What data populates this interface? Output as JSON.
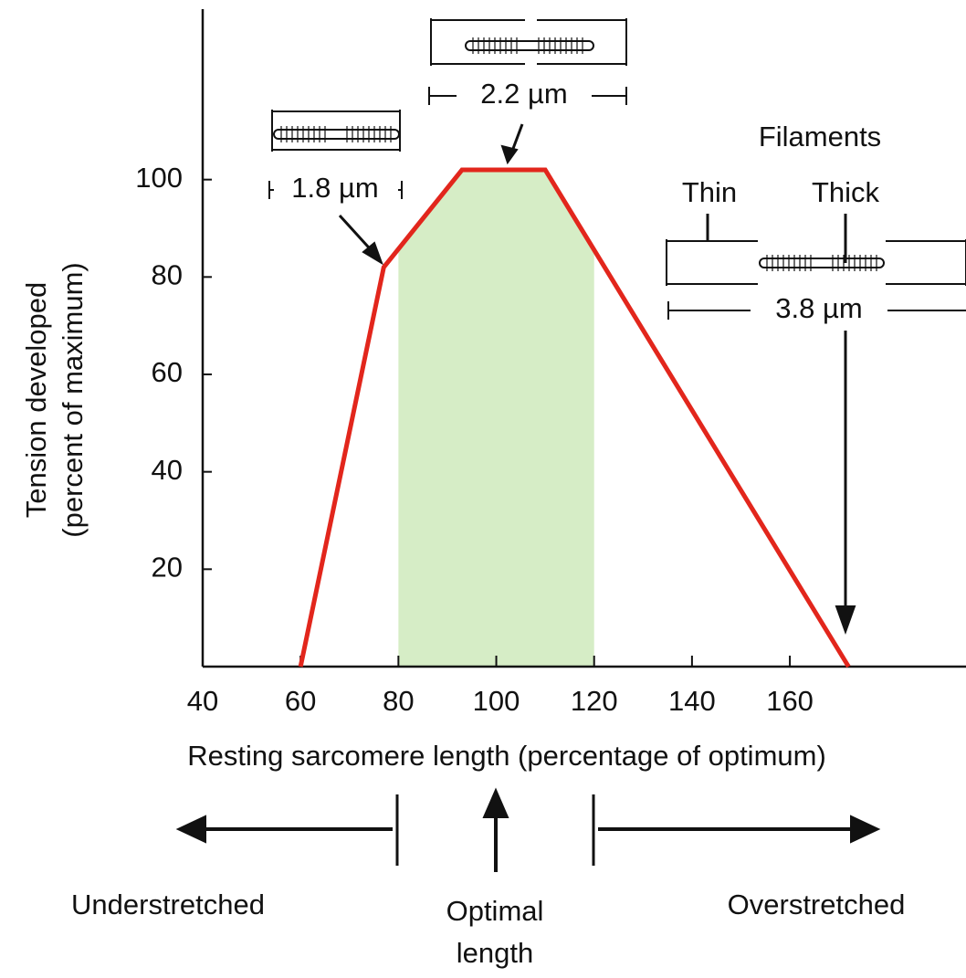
{
  "chart_data": {
    "type": "line",
    "xlabel": "Resting sarcomere length (percentage of optimum)",
    "ylabel": [
      "Tension developed",
      "(percent of maximum)"
    ],
    "x": [
      60,
      77,
      93,
      110,
      172
    ],
    "series": [
      {
        "color": "#e2261c",
        "values": [
          0,
          82,
          102,
          102,
          0
        ]
      }
    ],
    "xlim": [
      40,
      196
    ],
    "xticks": [
      40,
      60,
      80,
      100,
      120,
      140,
      160
    ],
    "ylim": [
      0,
      135
    ],
    "yticks": [
      20,
      40,
      60,
      80,
      100
    ],
    "highlight": {
      "xlim": [
        80,
        120
      ],
      "color": "#d6edc6"
    },
    "annotations": {
      "short": "1.8 µm",
      "optimal": "2.2 µm",
      "long": "3.8 µm",
      "filaments": "Filaments",
      "thin": "Thin",
      "thick": "Thick"
    },
    "regions": {
      "under": "Understretched",
      "optimal": [
        "Optimal",
        "length"
      ],
      "over": "Overstretched"
    }
  }
}
